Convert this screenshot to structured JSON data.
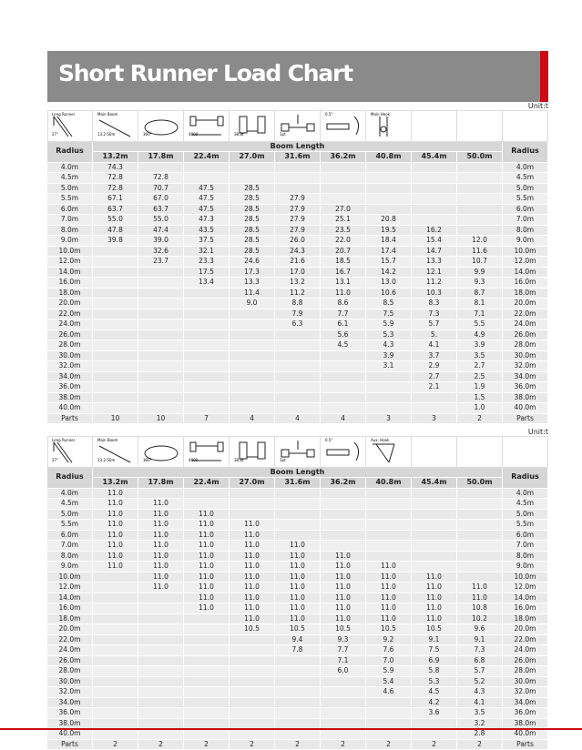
{
  "title": "Short Runner Load Chart",
  "colors": {
    "title_bar": "#8a8a8a",
    "accent_red": "#cc0a14",
    "header": "#d6d6d6",
    "cell": "#efefef"
  },
  "tables": [
    {
      "unit": "Unit:t",
      "icons": [
        {
          "name": "long-runner-icon",
          "label": "Long Runner",
          "sub": "27°"
        },
        {
          "name": "main-boom-icon",
          "label": "Main Boom",
          "sub": "13.2-50m"
        },
        {
          "name": "slew-360-icon",
          "label": "",
          "sub": "360°"
        },
        {
          "name": "outrigger-span-icon",
          "label": "",
          "sub": "4800"
        },
        {
          "name": "counterweight-icon",
          "label": "",
          "sub": "38.8t"
        },
        {
          "name": "load-pin-icon",
          "label": "",
          "sub": "1pt"
        },
        {
          "name": "level-angle-icon",
          "label": "0.5°",
          "sub": ""
        },
        {
          "name": "main-hook-icon",
          "label": "Main Hook",
          "sub": ""
        }
      ],
      "radius_label": "Radius",
      "boom_length_label": "Boom Length",
      "boom_lengths": [
        "13.2m",
        "17.8m",
        "22.4m",
        "27.0m",
        "31.6m",
        "36.2m",
        "40.8m",
        "45.4m",
        "50.0m"
      ],
      "rows": [
        {
          "radius": "4.0m",
          "values": [
            "74.3",
            "",
            "",
            "",
            "",
            "",
            "",
            "",
            ""
          ]
        },
        {
          "radius": "4.5m",
          "values": [
            "72.8",
            "72.8",
            "",
            "",
            "",
            "",
            "",
            "",
            ""
          ]
        },
        {
          "radius": "5.0m",
          "values": [
            "72.8",
            "70.7",
            "47.5",
            "28.5",
            "",
            "",
            "",
            "",
            ""
          ]
        },
        {
          "radius": "5.5m",
          "values": [
            "67.1",
            "67.0",
            "47.5",
            "28.5",
            "27.9",
            "",
            "",
            "",
            ""
          ]
        },
        {
          "radius": "6.0m",
          "values": [
            "63.7",
            "63.7",
            "47.5",
            "28.5",
            "27.9",
            "27.0",
            "",
            "",
            ""
          ]
        },
        {
          "radius": "7.0m",
          "values": [
            "55.0",
            "55.0",
            "47.3",
            "28.5",
            "27.9",
            "25.1",
            "20.8",
            "",
            ""
          ]
        },
        {
          "radius": "8.0m",
          "values": [
            "47.8",
            "47.4",
            "43.5",
            "28.5",
            "27.9",
            "23.5",
            "19.5",
            "16.2",
            ""
          ]
        },
        {
          "radius": "9.0m",
          "values": [
            "39.8",
            "39.0",
            "37.5",
            "28.5",
            "26.0",
            "22.0",
            "18.4",
            "15.4",
            "12.0"
          ]
        },
        {
          "radius": "10.0m",
          "values": [
            "",
            "32.6",
            "32.1",
            "28.5",
            "24.3",
            "20.7",
            "17.4",
            "14.7",
            "11.6"
          ]
        },
        {
          "radius": "12.0m",
          "values": [
            "",
            "23.7",
            "23.3",
            "24.6",
            "21.6",
            "18.5",
            "15.7",
            "13.3",
            "10.7"
          ]
        },
        {
          "radius": "14.0m",
          "values": [
            "",
            "",
            "17.5",
            "17.3",
            "17.0",
            "16.7",
            "14.2",
            "12.1",
            "9.9"
          ]
        },
        {
          "radius": "16.0m",
          "values": [
            "",
            "",
            "13.4",
            "13.3",
            "13.2",
            "13.1",
            "13.0",
            "11.2",
            "9.3"
          ]
        },
        {
          "radius": "18.0m",
          "values": [
            "",
            "",
            "",
            "11.4",
            "11.2",
            "11.0",
            "10.6",
            "10.3",
            "8.7"
          ]
        },
        {
          "radius": "20.0m",
          "values": [
            "",
            "",
            "",
            "9.0",
            "8.8",
            "8.6",
            "8.5",
            "8.3",
            "8.1"
          ]
        },
        {
          "radius": "22.0m",
          "values": [
            "",
            "",
            "",
            "",
            "7.9",
            "7.7",
            "7.5",
            "7.3",
            "7.1"
          ]
        },
        {
          "radius": "24.0m",
          "values": [
            "",
            "",
            "",
            "",
            "6.3",
            "6.1",
            "5.9",
            "5.7",
            "5.5"
          ]
        },
        {
          "radius": "26.0m",
          "values": [
            "",
            "",
            "",
            "",
            "",
            "5.6",
            "5.3",
            "5.",
            "4.9"
          ]
        },
        {
          "radius": "28.0m",
          "values": [
            "",
            "",
            "",
            "",
            "",
            "4.5",
            "4.3",
            "4.1",
            "3.9"
          ]
        },
        {
          "radius": "30.0m",
          "values": [
            "",
            "",
            "",
            "",
            "",
            "",
            "3.9",
            "3.7",
            "3.5"
          ]
        },
        {
          "radius": "32.0m",
          "values": [
            "",
            "",
            "",
            "",
            "",
            "",
            "3.1",
            "2.9",
            "2.7"
          ]
        },
        {
          "radius": "34.0m",
          "values": [
            "",
            "",
            "",
            "",
            "",
            "",
            "",
            "2.7",
            "2.5"
          ]
        },
        {
          "radius": "36.0m",
          "values": [
            "",
            "",
            "",
            "",
            "",
            "",
            "",
            "2.1",
            "1.9"
          ]
        },
        {
          "radius": "38.0m",
          "values": [
            "",
            "",
            "",
            "",
            "",
            "",
            "",
            "",
            "1.5"
          ]
        },
        {
          "radius": "40.0m",
          "values": [
            "",
            "",
            "",
            "",
            "",
            "",
            "",
            "",
            "1.0"
          ]
        }
      ],
      "parts_label": "Parts",
      "parts": [
        "10",
        "10",
        "7",
        "4",
        "4",
        "4",
        "3",
        "3",
        "2"
      ]
    },
    {
      "unit": "Unit:t",
      "icons": [
        {
          "name": "long-runner-icon",
          "label": "Long Runner",
          "sub": "27°"
        },
        {
          "name": "main-boom-icon",
          "label": "Main Boom",
          "sub": "13.2-50m"
        },
        {
          "name": "slew-360-icon",
          "label": "",
          "sub": "360°"
        },
        {
          "name": "outrigger-span-icon",
          "label": "",
          "sub": "4800"
        },
        {
          "name": "counterweight-icon",
          "label": "",
          "sub": "38.8t"
        },
        {
          "name": "load-pin-icon",
          "label": "",
          "sub": "1pt"
        },
        {
          "name": "level-angle-icon",
          "label": "0.5°",
          "sub": ""
        },
        {
          "name": "aux-hook-icon",
          "label": "Aux. Hook",
          "sub": ""
        }
      ],
      "radius_label": "Radius",
      "boom_length_label": "Boom Length",
      "boom_lengths": [
        "13.2m",
        "17.8m",
        "22.4m",
        "27.0m",
        "31.6m",
        "36.2m",
        "40.8m",
        "45.4m",
        "50.0m"
      ],
      "rows": [
        {
          "radius": "4.0m",
          "values": [
            "11.0",
            "",
            "",
            "",
            "",
            "",
            "",
            "",
            ""
          ]
        },
        {
          "radius": "4.5m",
          "values": [
            "11.0",
            "11.0",
            "",
            "",
            "",
            "",
            "",
            "",
            ""
          ]
        },
        {
          "radius": "5.0m",
          "values": [
            "11.0",
            "11.0",
            "11.0",
            "",
            "",
            "",
            "",
            "",
            ""
          ]
        },
        {
          "radius": "5.5m",
          "values": [
            "11.0",
            "11.0",
            "11.0",
            "11.0",
            "",
            "",
            "",
            "",
            ""
          ]
        },
        {
          "radius": "6.0m",
          "values": [
            "11.0",
            "11.0",
            "11.0",
            "11.0",
            "",
            "",
            "",
            "",
            ""
          ]
        },
        {
          "radius": "7.0m",
          "values": [
            "11.0",
            "11.0",
            "11.0",
            "11.0",
            "11.0",
            "",
            "",
            "",
            ""
          ]
        },
        {
          "radius": "8.0m",
          "values": [
            "11.0",
            "11.0",
            "11.0",
            "11.0",
            "11.0",
            "11.0",
            "",
            "",
            ""
          ]
        },
        {
          "radius": "9.0m",
          "values": [
            "11.0",
            "11.0",
            "11.0",
            "11.0",
            "11.0",
            "11.0",
            "11.0",
            "",
            ""
          ]
        },
        {
          "radius": "10.0m",
          "values": [
            "",
            "11.0",
            "11.0",
            "11.0",
            "11.0",
            "11.0",
            "11.0",
            "11.0",
            ""
          ]
        },
        {
          "radius": "12.0m",
          "values": [
            "",
            "11.0",
            "11.0",
            "11.0",
            "11.0",
            "11.0",
            "11.0",
            "11.0",
            "11.0"
          ]
        },
        {
          "radius": "14.0m",
          "values": [
            "",
            "",
            "11.0",
            "11.0",
            "11.0",
            "11.0",
            "11.0",
            "11.0",
            "11.0"
          ]
        },
        {
          "radius": "16.0m",
          "values": [
            "",
            "",
            "11.0",
            "11.0",
            "11.0",
            "11.0",
            "11.0",
            "11.0",
            "10.8"
          ]
        },
        {
          "radius": "18.0m",
          "values": [
            "",
            "",
            "",
            "11.0",
            "11.0",
            "11.0",
            "11.0",
            "11.0",
            "10.2"
          ]
        },
        {
          "radius": "20.0m",
          "values": [
            "",
            "",
            "",
            "10.5",
            "10.5",
            "10.5",
            "10.5",
            "10.5",
            "9.6"
          ]
        },
        {
          "radius": "22.0m",
          "values": [
            "",
            "",
            "",
            "",
            "9.4",
            "9.3",
            "9.2",
            "9.1",
            "9.1"
          ]
        },
        {
          "radius": "24.0m",
          "values": [
            "",
            "",
            "",
            "",
            "7.8",
            "7.7",
            "7.6",
            "7.5",
            "7.3"
          ]
        },
        {
          "radius": "26.0m",
          "values": [
            "",
            "",
            "",
            "",
            "",
            "7.1",
            "7.0",
            "6.9",
            "6.8"
          ]
        },
        {
          "radius": "28.0m",
          "values": [
            "",
            "",
            "",
            "",
            "",
            "6.0",
            "5.9",
            "5.8",
            "5.7"
          ]
        },
        {
          "radius": "30.0m",
          "values": [
            "",
            "",
            "",
            "",
            "",
            "",
            "5.4",
            "5.3",
            "5.2"
          ]
        },
        {
          "radius": "32.0m",
          "values": [
            "",
            "",
            "",
            "",
            "",
            "",
            "4.6",
            "4.5",
            "4.3"
          ]
        },
        {
          "radius": "34.0m",
          "values": [
            "",
            "",
            "",
            "",
            "",
            "",
            "",
            "4.2",
            "4.1"
          ]
        },
        {
          "radius": "36.0m",
          "values": [
            "",
            "",
            "",
            "",
            "",
            "",
            "",
            "3.6",
            "3.5"
          ]
        },
        {
          "radius": "38.0m",
          "values": [
            "",
            "",
            "",
            "",
            "",
            "",
            "",
            "",
            "3.2"
          ]
        },
        {
          "radius": "40.0m",
          "values": [
            "",
            "",
            "",
            "",
            "",
            "",
            "",
            "",
            "2.8"
          ]
        }
      ],
      "parts_label": "Parts",
      "parts": [
        "2",
        "2",
        "2",
        "2",
        "2",
        "2",
        "2",
        "2",
        "2"
      ]
    }
  ]
}
